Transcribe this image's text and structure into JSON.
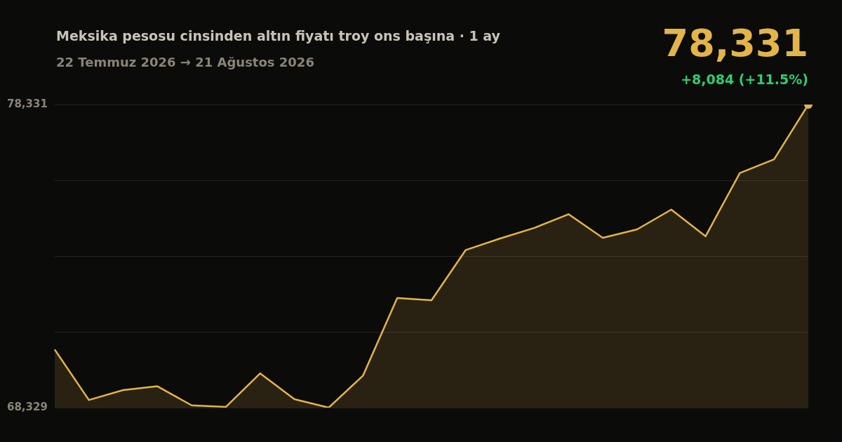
{
  "chart_data": {
    "type": "area",
    "title": "Meksika pesosu cinsinden altın fiyatı troy ons başına · 1 ay",
    "subtitle": "22 Temmuz 2026 → 21 Ağustos 2026",
    "annotations": [
      "78,331",
      "+8,084 (+11.5%)"
    ],
    "categories": [
      null,
      null,
      null,
      null,
      null,
      null,
      null,
      null,
      null,
      null,
      null,
      null,
      null,
      null,
      null,
      null,
      null,
      null,
      null,
      null,
      null,
      null,
      null
    ],
    "series": [
      {
        "color": "#e3b448",
        "values": [
          70247,
          68580,
          68907,
          69033,
          68404,
          68354,
          69460,
          68605,
          68329,
          69384,
          71948,
          71872,
          73531,
          73908,
          74260,
          74712,
          73933,
          74209,
          74863,
          73983,
          76069,
          76521,
          78331
        ]
      }
    ],
    "ylim": [
      68329,
      78331
    ],
    "yticks": [
      {
        "value": 68329,
        "label": "68,329"
      },
      {
        "value": 70829.5,
        "label": null
      },
      {
        "value": 73330,
        "label": null
      },
      {
        "value": 75830.5,
        "label": null
      },
      {
        "value": 78331,
        "label": "78,331"
      }
    ],
    "grid": "y",
    "tick_labels": "y",
    "legend": false
  }
}
